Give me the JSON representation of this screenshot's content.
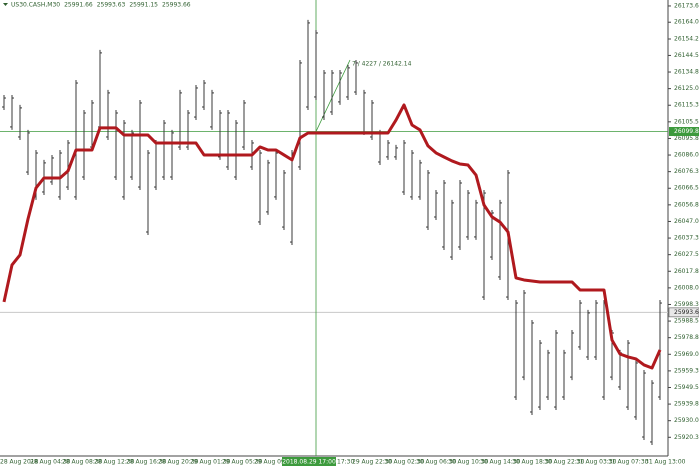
{
  "chart_data": {
    "type": "hilo",
    "symbol": "US30.CASH,M30",
    "header_values": [
      25991.66,
      25993.63,
      25991.15,
      25993.66
    ],
    "bar_color": "#3a3a3a",
    "high": [
      26121.3,
      26121.3,
      26115.5,
      26100.8,
      26089.0,
      26083.2,
      26086.1,
      26089.0,
      26094.9,
      26130.1,
      26112.5,
      26118.4,
      26147.8,
      26124.3,
      26112.5,
      26106.6,
      26100.8,
      26118.4,
      26089.0,
      26094.9,
      26106.6,
      26100.8,
      26124.3,
      26112.5,
      26127.2,
      26130.1,
      26124.3,
      26112.5,
      26112.5,
      26106.6,
      26118.4,
      26094.9,
      26089.0,
      26083.2,
      26089.0,
      26077.3,
      26089.0,
      26141.9,
      26165.4,
      26159.5,
      26136.0,
      26136.0,
      26136.0,
      26139.0,
      26141.9,
      26124.3,
      26118.4,
      26100.8,
      26094.9,
      26092.0,
      26094.9,
      26089.0,
      26083.2,
      26077.3,
      26065.5,
      26071.4,
      26059.7,
      26071.4,
      26065.5,
      26059.7,
      26065.5,
      26053.8,
      26059.7,
      26077.3,
      26000.9,
      26006.8,
      25989.2,
      25977.4,
      25971.6,
      25983.3,
      25971.6,
      25983.3,
      26000.9,
      25995.1,
      26000.9,
      26000.9,
      25983.3,
      25971.6,
      25977.4,
      25965.7,
      25959.8,
      25953.9,
      26000.9
    ],
    "low": [
      26112.5,
      26100.8,
      26094.9,
      26074.3,
      26059.7,
      26062.6,
      26068.5,
      26059.7,
      26065.5,
      26059.7,
      26071.4,
      26089.0,
      26100.8,
      26094.9,
      26071.4,
      26059.7,
      26071.4,
      26065.5,
      26039.1,
      26065.5,
      26071.4,
      26071.4,
      26089.0,
      26089.0,
      26106.6,
      26112.5,
      26100.8,
      26083.2,
      26077.3,
      26071.4,
      26089.0,
      26077.3,
      26045.0,
      26050.9,
      26059.7,
      26042.0,
      26033.2,
      26077.3,
      26112.5,
      26118.4,
      26106.6,
      26109.6,
      26115.5,
      26118.4,
      26121.3,
      26097.8,
      26094.9,
      26080.2,
      26083.2,
      26083.2,
      26062.6,
      26059.7,
      26059.7,
      26042.0,
      26047.9,
      26030.3,
      26024.4,
      26030.3,
      26036.2,
      26036.2,
      26000.9,
      26024.4,
      26012.7,
      26000.9,
      25942.2,
      25953.9,
      25933.4,
      25936.3,
      25942.2,
      25936.3,
      25942.2,
      25953.9,
      25971.6,
      25965.7,
      25965.7,
      25942.2,
      25953.9,
      25948.1,
      25936.3,
      25930.5,
      25918.7,
      25915.8,
      25942.2
    ],
    "indicator": {
      "color": "#b0191e",
      "values": [
        25999.8,
        26021.5,
        26027.4,
        26048.5,
        26066.7,
        26072.6,
        26072.6,
        26072.6,
        26076.7,
        26089.0,
        26089.0,
        26089.0,
        26102.0,
        26102.0,
        26102.0,
        26097.8,
        26097.8,
        26097.8,
        26097.8,
        26093.1,
        26093.1,
        26093.1,
        26093.1,
        26093.1,
        26093.1,
        26086.1,
        26086.1,
        26086.1,
        26086.1,
        26086.1,
        26086.1,
        26086.1,
        26090.8,
        26089.0,
        26089.0,
        26086.1,
        26083.2,
        26096.1,
        26099.0,
        26099.0,
        26099.0,
        26099.0,
        26099.0,
        26099.0,
        26099.0,
        26099.0,
        26099.0,
        26099.0,
        26099.0,
        26106.6,
        26115.5,
        26103.7,
        26100.8,
        26091.4,
        26087.3,
        26084.9,
        26082.6,
        26080.8,
        26080.2,
        26074.3,
        26056.7,
        26049.7,
        26046.7,
        26040.9,
        26013.9,
        26012.7,
        26012.1,
        26011.5,
        26011.5,
        26011.5,
        26011.5,
        26011.5,
        26006.8,
        26006.8,
        26006.8,
        26006.8,
        25977.4,
        25969.2,
        25967.5,
        25966.3,
        25962.8,
        25961.0,
        25971.6
      ]
    },
    "ylim": [
      25909.9,
      26177.1
    ],
    "yticks": [
      {
        "value": 26173.6,
        "label": "26173.60"
      },
      26164.05,
      {
        "value": 26154.2,
        "label": "26154.20"
      },
      26144.55,
      {
        "value": 26134.8,
        "label": "26134.80"
      },
      26125.05,
      {
        "value": 26115.3,
        "label": "26115.30"
      },
      26105.55,
      {
        "value": 26095.8,
        "label": "26095.80"
      },
      26086.05,
      {
        "value": 26076.3,
        "label": "26076.30"
      },
      26066.55,
      {
        "value": 26056.8,
        "label": "26056.80"
      },
      26047.05,
      {
        "value": 26037.3,
        "label": "26037.30"
      },
      26027.55,
      {
        "value": 26017.8,
        "label": "26017.80"
      },
      26008.05,
      {
        "value": 25998.3,
        "label": "25998.30"
      },
      25988.55,
      {
        "value": 25978.8,
        "label": "25978.80"
      },
      25969.05,
      {
        "value": 25959.3,
        "label": "25959.30"
      },
      25949.55,
      {
        "value": 25939.8,
        "label": "25939.80"
      },
      25930.05,
      {
        "value": 25920.3,
        "label": "25920.30"
      }
    ],
    "x_labels": [
      "28 Aug 2018",
      "28 Aug 04:30",
      "28 Aug 08:30",
      "28 Aug 12:30",
      "28 Aug 16:30",
      "28 Aug 20:30",
      "29 Aug 01:30",
      "29 Aug 05:30",
      "29 Aug 09:30",
      "29",
      "17:30",
      "29 Aug 22:30",
      "30 Aug 02:30",
      "30 Aug 06:30",
      "30 Aug 10:30",
      "30 Aug 14:30",
      "30 Aug 18:30",
      "30 Aug 22:30",
      "31 Aug 03:30",
      "31 Aug 07:30",
      "31 Aug 13:00"
    ],
    "crosshair": {
      "time": "2018.08.29 17:00",
      "price": 26099.87,
      "color": "#3c9a3c"
    },
    "last_price": 25993.66,
    "measure_label": "7 / 4227 / 26142.14"
  }
}
